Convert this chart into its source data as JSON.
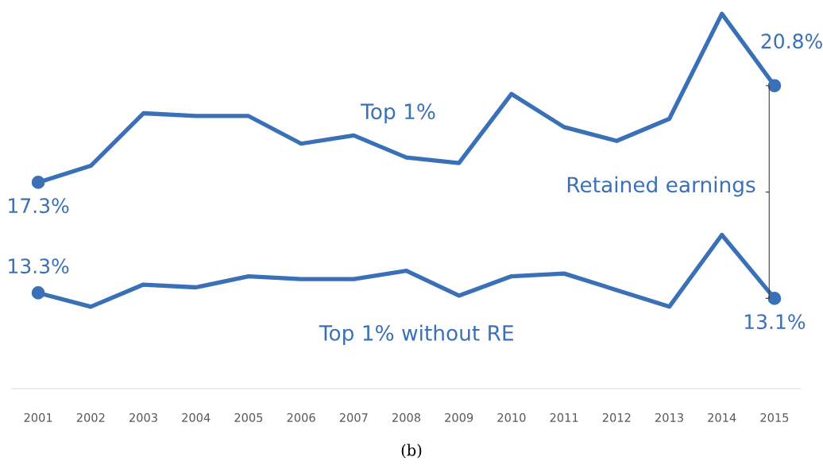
{
  "chart_data": {
    "type": "line",
    "categories": [
      "2001",
      "2002",
      "2003",
      "2004",
      "2005",
      "2006",
      "2007",
      "2008",
      "2009",
      "2010",
      "2011",
      "2012",
      "2013",
      "2014",
      "2015"
    ],
    "series": [
      {
        "name": "Top 1%",
        "color": "#3a70b8",
        "values": [
          17.3,
          17.9,
          19.8,
          19.7,
          19.7,
          18.7,
          19.0,
          18.2,
          18.0,
          20.5,
          19.3,
          18.8,
          19.6,
          23.4,
          20.8
        ],
        "value_labels": [
          "17.3%",
          null,
          null,
          null,
          null,
          null,
          null,
          null,
          null,
          null,
          null,
          null,
          null,
          null,
          "20.8%"
        ]
      },
      {
        "name": "Top 1% without RE",
        "color": "#3a70b8",
        "values": [
          13.3,
          12.8,
          13.6,
          13.5,
          13.9,
          13.8,
          13.8,
          14.1,
          13.2,
          13.9,
          14.0,
          13.4,
          12.8,
          15.4,
          13.1
        ],
        "value_labels": [
          "13.3%",
          null,
          null,
          null,
          null,
          null,
          null,
          null,
          null,
          null,
          null,
          null,
          null,
          null,
          "13.1%"
        ]
      }
    ],
    "tick_labels": "x",
    "line_style": "solid",
    "grid": false,
    "legend": false,
    "annotations": [
      "Retained earnings",
      "(b)"
    ]
  }
}
